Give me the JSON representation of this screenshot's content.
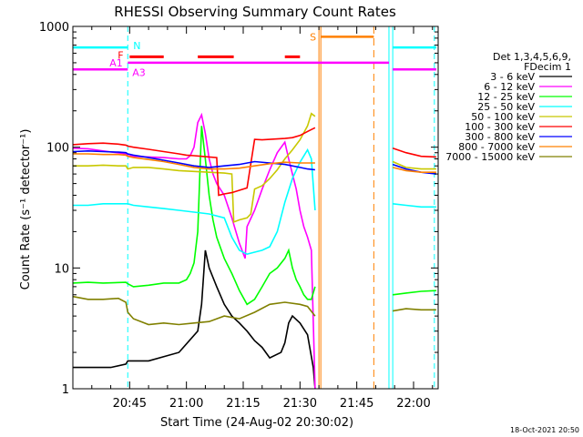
{
  "chart_data": {
    "type": "line",
    "title": "RHESSI Observing Summary Count Rates",
    "xlabel": "Start Time (24-Aug-02 20:30:02)",
    "ylabel": "Count Rate (s⁻¹ detector⁻¹)",
    "yscale": "log",
    "ylim": [
      1,
      1000
    ],
    "xlim_minutes": [
      0,
      96.5
    ],
    "x_tick_labels": [
      "20:45",
      "21:00",
      "21:15",
      "21:30",
      "21:45",
      "22:00"
    ],
    "x_tick_minutes": [
      15,
      30,
      45,
      60,
      75,
      90
    ],
    "y_tick_labels": [
      "1",
      "10",
      "100",
      "1000"
    ],
    "y_tick_values": [
      1,
      10,
      100,
      1000
    ],
    "footer": "18-Oct-2021 20:50",
    "legend": {
      "placement": "right",
      "header_lines": [
        "Det 1,3,4,5,6,9,",
        "FDecim 1"
      ]
    },
    "series": [
      {
        "name": "3 - 6 keV",
        "color": "#000000",
        "x": [
          0,
          10,
          14,
          14.5,
          20,
          28,
          33,
          34,
          35,
          36,
          38,
          40,
          42,
          44,
          46,
          48,
          50,
          52,
          55,
          56,
          57,
          58,
          60,
          62,
          63.5,
          64
        ],
        "values": [
          1.5,
          1.5,
          1.6,
          1.7,
          1.7,
          2.0,
          3.0,
          5.0,
          14,
          10,
          7,
          5,
          4,
          3.5,
          3,
          2.5,
          2.2,
          1.8,
          2.0,
          2.4,
          3.5,
          4,
          3.5,
          2.8,
          1.5,
          1
        ]
      },
      {
        "name": "6 - 12 keV",
        "color": "#ff00ff",
        "x": [
          0,
          4,
          8,
          14,
          14.5,
          16,
          20,
          24,
          28,
          30,
          31,
          32,
          33,
          34,
          35,
          36,
          37,
          38,
          40,
          42,
          44,
          45.5,
          46,
          48,
          50,
          52,
          54,
          56,
          57,
          58,
          59,
          60,
          61,
          62,
          63,
          64
        ],
        "values": [
          98,
          97,
          93,
          88,
          85,
          84,
          83,
          82,
          80,
          80,
          85,
          100,
          160,
          185,
          130,
          80,
          60,
          50,
          40,
          26,
          16,
          12,
          22,
          30,
          45,
          65,
          90,
          110,
          80,
          60,
          45,
          30,
          22,
          18,
          14,
          1
        ]
      },
      {
        "name": "12 - 25 keV",
        "color": "#00ff00",
        "x": [
          0,
          4,
          8,
          14,
          14.5,
          16,
          20,
          24,
          28,
          30,
          31,
          32,
          33,
          34,
          35,
          36,
          37,
          38,
          40,
          42,
          44,
          46,
          48,
          50,
          52,
          54,
          56,
          57,
          58,
          59,
          60,
          61,
          62,
          63,
          64
        ],
        "values": [
          7.5,
          7.6,
          7.5,
          7.6,
          7.4,
          7.0,
          7.2,
          7.5,
          7.5,
          8,
          9,
          11,
          20,
          150,
          80,
          40,
          25,
          18,
          12,
          9,
          6.5,
          5,
          5.5,
          7,
          9,
          10,
          12,
          14,
          10,
          8,
          7,
          6,
          5.5,
          5.5,
          7
        ]
      },
      {
        "name": "25 - 50 keV",
        "color": "#00ffff",
        "x": [
          0,
          4,
          8,
          12,
          14,
          14.5,
          16,
          20,
          24,
          28,
          32,
          36,
          40,
          42,
          44,
          46,
          48,
          50,
          52,
          54,
          56,
          58,
          60,
          62,
          63,
          64
        ],
        "values": [
          33,
          33,
          34,
          34,
          34,
          34,
          33,
          32,
          31,
          30,
          29,
          28,
          26,
          18,
          14,
          13,
          13.5,
          14,
          15,
          20,
          35,
          55,
          75,
          95,
          80,
          30
        ]
      },
      {
        "name": "50 - 100 keV",
        "color": "#c8c800",
        "x": [
          0,
          4,
          8,
          12,
          14,
          14.5,
          16,
          20,
          24,
          28,
          32,
          36,
          40,
          42,
          42.5,
          44,
          46,
          47,
          48,
          50,
          52,
          54,
          56,
          58,
          60,
          62,
          63,
          64
        ],
        "values": [
          70,
          70,
          71,
          70,
          70,
          66,
          68,
          68,
          66,
          64,
          63,
          62,
          61,
          60,
          24,
          25,
          26,
          28,
          45,
          48,
          55,
          65,
          80,
          95,
          115,
          150,
          190,
          180
        ]
      },
      {
        "name": "100 - 300 keV",
        "color": "#ff0000",
        "x": [
          0,
          4,
          8,
          12,
          14,
          14.5,
          16,
          20,
          24,
          28,
          30,
          32,
          34,
          36,
          38,
          38.5,
          40,
          42,
          44,
          46,
          48,
          50,
          52,
          54,
          56,
          58,
          60,
          62,
          63,
          64
        ],
        "values": [
          105,
          107,
          108,
          106,
          104,
          102,
          100,
          96,
          92,
          88,
          86,
          85,
          84,
          83,
          82,
          40,
          41,
          42,
          44,
          46,
          116,
          115,
          116,
          117,
          118,
          120,
          125,
          135,
          140,
          145
        ]
      },
      {
        "name": "300 - 800 keV",
        "color": "#0000ff",
        "x": [
          0,
          4,
          8,
          12,
          14,
          14.5,
          16,
          20,
          24,
          28,
          32,
          36,
          40,
          44,
          48,
          52,
          56,
          60,
          62,
          64
        ],
        "values": [
          92,
          93,
          92,
          91,
          90,
          88,
          86,
          82,
          78,
          74,
          70,
          68,
          70,
          72,
          76,
          74,
          72,
          68,
          66,
          65
        ]
      },
      {
        "name": "800 - 7000 keV",
        "color": "#ff8000",
        "x": [
          0,
          4,
          8,
          12,
          14,
          14.5,
          16,
          20,
          24,
          28,
          32,
          36,
          40,
          44,
          48,
          52,
          56,
          60,
          62,
          64
        ],
        "values": [
          88,
          88,
          87,
          87,
          86,
          84,
          82,
          79,
          76,
          72,
          68,
          66,
          66,
          67,
          70,
          73,
          75,
          74,
          74,
          74
        ]
      },
      {
        "name": "7000 - 15000 keV",
        "color": "#808000",
        "x": [
          0,
          4,
          8,
          12,
          14,
          14.5,
          16,
          20,
          24,
          28,
          32,
          36,
          40,
          44,
          48,
          52,
          56,
          60,
          62,
          64
        ],
        "values": [
          5.8,
          5.5,
          5.5,
          5.6,
          5.2,
          4.3,
          3.8,
          3.4,
          3.5,
          3.4,
          3.5,
          3.6,
          4.0,
          3.8,
          4.3,
          5.0,
          5.2,
          5.0,
          4.8,
          4.0
        ]
      }
    ],
    "after_gap_series_minutes": [
      84.5,
      88,
      92,
      96
    ],
    "after_gap_values": {
      "100 - 300 keV": [
        98,
        90,
        84,
        83
      ],
      "50 - 100 keV": [
        76,
        68,
        66,
        66
      ],
      "300 - 800 keV": [
        72,
        66,
        62,
        60
      ],
      "800 - 7000 keV": [
        68,
        64,
        62,
        62
      ],
      "25 - 50 keV": [
        34,
        33,
        32,
        32
      ],
      "7000 - 15000 keV": [
        4.4,
        4.6,
        4.5,
        4.5
      ],
      "12 - 25 keV": [
        6.0,
        6.2,
        6.4,
        6.5
      ]
    },
    "flags": {
      "N_label": "N",
      "F_label": "F",
      "A1_label": "A1",
      "A3_label": "A3",
      "S_label": "S",
      "N_segments_minutes": [
        [
          0,
          14.5
        ],
        [
          84.5,
          96
        ]
      ],
      "N_value": 670,
      "F_segments_minutes": [
        [
          15,
          24
        ],
        [
          33,
          42.5
        ],
        [
          56,
          60
        ]
      ],
      "F_value": 560,
      "A_segments_minutes": [
        [
          0,
          14.5
        ],
        [
          14.5,
          83.5
        ],
        [
          84.5,
          96
        ]
      ],
      "A_levels": [
        440,
        500,
        440
      ],
      "S_segment_minutes": [
        65.5,
        79.5
      ],
      "S_value": 820,
      "N_color": "#00ffff",
      "F_color": "#ff0000",
      "A_color": "#ff00ff",
      "S_color": "#ff8000"
    },
    "markers": {
      "night_start_minutes": [
        14.5,
        95.5
      ],
      "night_end_minutes": [
        83.5,
        84.5
      ],
      "saa_minutes": [
        65,
        65.5,
        79.5
      ]
    }
  }
}
